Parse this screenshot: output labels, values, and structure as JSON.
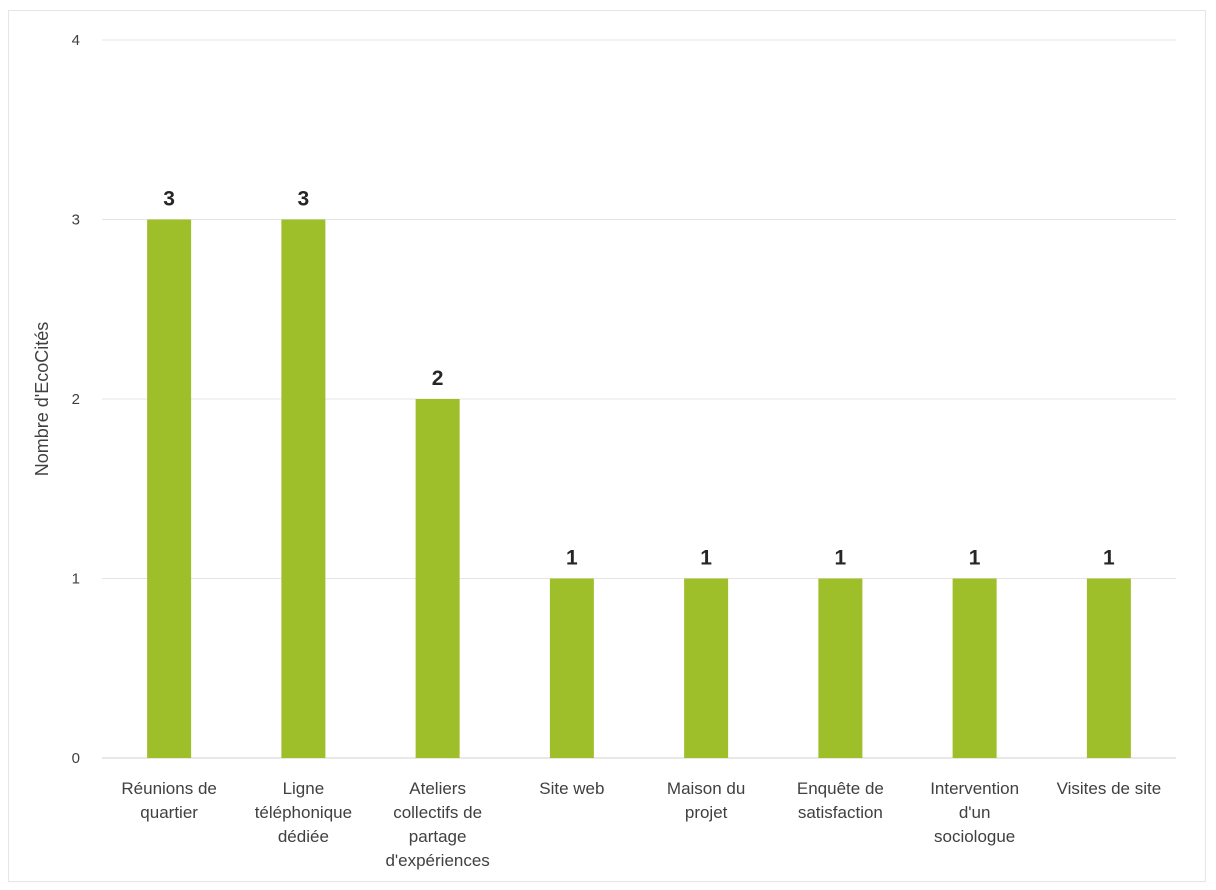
{
  "chart_data": {
    "type": "bar",
    "title": "",
    "xlabel": "",
    "ylabel": "Nombre d'EcoCités",
    "ylim": [
      0,
      4
    ],
    "yticks": [
      0,
      1,
      2,
      3,
      4
    ],
    "grid": true,
    "bar_color": "#9fbf2a",
    "categories": [
      [
        "Réunions de",
        "quartier"
      ],
      [
        "Ligne",
        "téléphonique",
        "dédiée"
      ],
      [
        "Ateliers",
        "collectifs de",
        "partage",
        "d'expériences"
      ],
      [
        "Site web"
      ],
      [
        "Maison du",
        "projet"
      ],
      [
        "Enquête de",
        "satisfaction"
      ],
      [
        "Intervention",
        "d'un",
        "sociologue"
      ],
      [
        "Visites de site"
      ]
    ],
    "values": [
      3,
      3,
      2,
      1,
      1,
      1,
      1,
      1
    ],
    "data_labels": [
      "3",
      "3",
      "2",
      "1",
      "1",
      "1",
      "1",
      "1"
    ]
  }
}
